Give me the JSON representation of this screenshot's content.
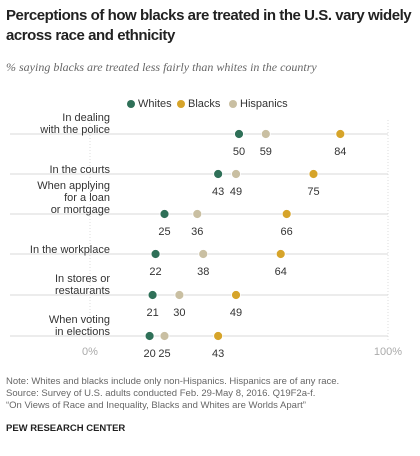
{
  "chart_data": {
    "type": "dot",
    "title": "Perceptions of how blacks are treated in the U.S. vary widely across race and ethnicity",
    "subtitle": "% saying blacks are treated less fairly than whites in the country",
    "categories": [
      "In dealing\nwith the police",
      "In the courts",
      "When applying\nfor a loan\nor mortgage",
      "In the workplace",
      "In stores or\nrestaurants",
      "When voting\nin elections"
    ],
    "series": [
      {
        "name": "Whites",
        "color": "#2f7058",
        "values": [
          50,
          43,
          25,
          22,
          21,
          20
        ]
      },
      {
        "name": "Blacks",
        "color": "#d6a42a",
        "values": [
          84,
          75,
          66,
          64,
          49,
          43
        ]
      },
      {
        "name": "Hispanics",
        "color": "#c9bfa2",
        "values": [
          59,
          49,
          36,
          38,
          30,
          25
        ]
      }
    ],
    "xlim": [
      0,
      100
    ],
    "xticks": [
      {
        "value": 0,
        "label": "0%"
      },
      {
        "value": 100,
        "label": "100%"
      }
    ],
    "notes": [
      "Note: Whites and blacks include only non-Hispanics. Hispanics are of any race.",
      "Source: Survey of U.S. adults conducted Feb. 29-May 8, 2016. Q19F2a-f.",
      "“On Views of Race and Inequality, Blacks and Whites are Worlds Apart”"
    ],
    "source": "PEW RESEARCH CENTER"
  }
}
